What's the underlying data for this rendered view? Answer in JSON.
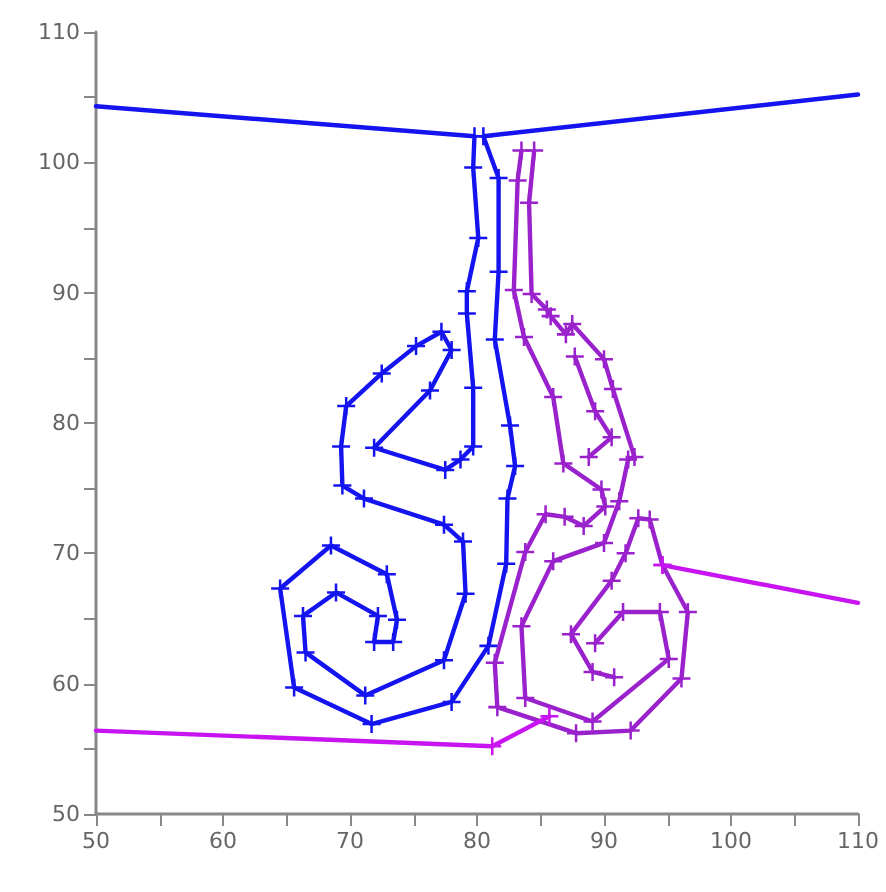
{
  "chart_data": {
    "type": "line",
    "marker": "cross",
    "line_style": "solid",
    "xlim": [
      50,
      110
    ],
    "ylim": [
      50,
      110
    ],
    "xticks": [
      50,
      {
        "value": 55,
        "label": null
      },
      60,
      {
        "value": 65,
        "label": null
      },
      70,
      {
        "value": 75,
        "label": null
      },
      80,
      {
        "value": 85,
        "label": null
      },
      90,
      {
        "value": 95,
        "label": null
      },
      100,
      {
        "value": 105,
        "label": null
      },
      110
    ],
    "yticks": [
      50,
      {
        "value": 55,
        "label": null
      },
      60,
      {
        "value": 65,
        "label": null
      },
      70,
      {
        "value": 75,
        "label": null
      },
      80,
      {
        "value": 85,
        "label": null
      },
      90,
      {
        "value": 95,
        "label": null
      },
      100,
      {
        "value": 105,
        "label": null
      },
      110
    ],
    "series": [
      {
        "color": "#1414f0",
        "x": [
          50,
          79.8,
          79.7,
          80.1,
          79.2,
          79.2,
          79.7,
          79.7,
          78.7,
          77.5,
          71.9,
          76.3,
          78.0,
          77.2,
          75.2,
          72.5,
          69.7,
          69.3,
          69.4,
          71.1,
          77.4,
          78.9,
          79.1,
          77.4,
          71.2,
          66.5,
          66.3,
          68.9,
          72.2,
          71.9,
          73.4,
          73.7,
          72.9,
          68.5,
          64.5,
          65.6,
          71.7,
          78.0,
          80.9,
          82.3,
          82.4,
          83.0,
          82.6,
          81.4,
          81.7,
          81.7,
          80.5,
          110
        ],
        "values": [
          104.3,
          102.0,
          99.6,
          94.2,
          90.1,
          88.4,
          82.7,
          78.2,
          77.2,
          76.4,
          78.1,
          82.5,
          85.6,
          87.0,
          85.9,
          83.8,
          81.3,
          78.2,
          75.2,
          74.2,
          72.2,
          70.9,
          66.9,
          61.8,
          59.1,
          62.4,
          65.2,
          67.0,
          65.2,
          63.2,
          63.2,
          64.9,
          68.4,
          70.6,
          67.3,
          59.7,
          56.9,
          58.6,
          62.9,
          69.2,
          74.2,
          76.7,
          79.8,
          86.4,
          91.6,
          98.8,
          102.0,
          105.2
        ]
      },
      {
        "color": "#9a22cc",
        "x": [
          83.5,
          83.2,
          82.9,
          83.7,
          86.0,
          86.8,
          89.8,
          90.1,
          88.4,
          86.9,
          85.4,
          83.8,
          81.4,
          81.6,
          87.8,
          92.1,
          96.1,
          96.6,
          94.6,
          93.6,
          92.7,
          91.7,
          90.6,
          87.4,
          89.1,
          90.8,
          null,
          84.5,
          84.1,
          84.3,
          85.5,
          85.8,
          87.0,
          87.5,
          90.0,
          90.7,
          92.4,
          91.9,
          91.2,
          90.0,
          86.0,
          83.5,
          83.8,
          89.1,
          95.1,
          94.4,
          91.5,
          89.3,
          null,
          87.7,
          89.3,
          90.6,
          88.8
        ],
        "values": [
          100.9,
          98.6,
          90.2,
          86.6,
          82.0,
          76.9,
          74.9,
          73.6,
          72.1,
          72.8,
          73.0,
          70.1,
          61.6,
          58.2,
          56.2,
          56.4,
          60.4,
          65.5,
          69.1,
          72.6,
          72.7,
          70.0,
          67.9,
          63.8,
          60.9,
          60.5,
          null,
          100.9,
          96.9,
          89.9,
          88.7,
          88.2,
          86.8,
          87.6,
          84.9,
          82.6,
          77.4,
          77.2,
          74.0,
          70.8,
          69.4,
          64.4,
          58.9,
          57.1,
          61.9,
          65.5,
          65.5,
          63.1,
          null,
          85.1,
          80.9,
          78.9,
          77.4
        ]
      },
      {
        "color": "#c814f0",
        "x": [
          50,
          81.2,
          85.7,
          null,
          94.6,
          110
        ],
        "values": [
          56.4,
          55.2,
          57.5,
          null,
          69.1,
          66.2
        ]
      }
    ]
  }
}
